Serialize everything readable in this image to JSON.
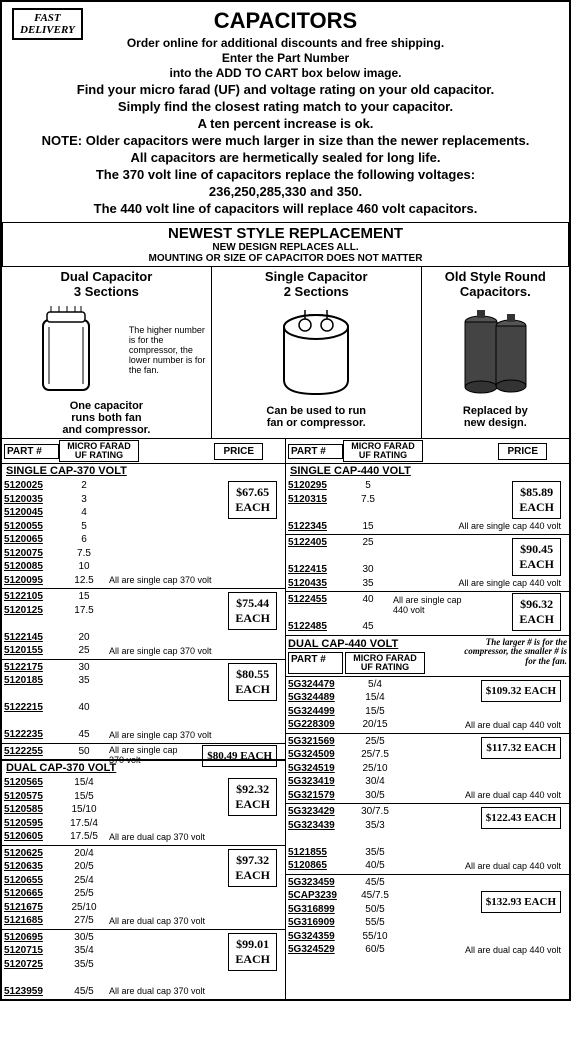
{
  "badge": {
    "l1": "FAST",
    "l2": "DELIVERY"
  },
  "title": "CAPACITORS",
  "subs": [
    "Order online for additional discounts and free shipping.",
    "Enter the Part Number",
    "into the ADD TO CART box below image."
  ],
  "subs2": [
    "Find your micro farad (UF) and voltage rating on your old capacitor.",
    "Simply find the closest rating match to your capacitor.",
    "A ten percent increase is ok.",
    "NOTE: Older capacitors were much larger in size than the newer replacements.",
    "All capacitors are hermetically sealed for long life.",
    "The 370 volt line of capacitors replace the following voltages:",
    "236,250,285,330 and 350.",
    "The 440 volt line of capacitors will replace 460 volt capacitors."
  ],
  "newest": {
    "t": "NEWEST STYLE REPLACEMENT",
    "s1": "NEW DESIGN REPLACES ALL.",
    "s2": "MOUNTING OR SIZE OF CAPACITOR DOES NOT MATTER"
  },
  "illus": {
    "a": {
      "h1": "Dual Capacitor",
      "h2": "3 Sections",
      "note": "The higher number is for the compressor, the lower number is for the fan.",
      "b1": "One capacitor",
      "b2": "runs both fan",
      "b3": "and compressor."
    },
    "b": {
      "h1": "Single Capacitor",
      "h2": "2 Sections",
      "b1": "Can be used to run",
      "b2": "fan or compressor."
    },
    "c": {
      "h1": "Old Style Round",
      "h2": "Capacitors.",
      "b1": "Replaced by",
      "b2": "new design."
    }
  },
  "th": {
    "part": "PART #",
    "uf": "MICRO FARAD UF RATING",
    "price": "PRICE"
  },
  "l": {
    "s1": {
      "h": "SINGLE CAP-370 VOLT"
    },
    "b1": {
      "parts": [
        "5120025",
        "5120035",
        "5120045",
        "5120055",
        "5120065",
        "5120075",
        "5120085",
        "5120095"
      ],
      "ufs": [
        "2",
        "3",
        "4",
        "5",
        "6",
        "7.5",
        "10",
        "12.5"
      ],
      "price": "$67.65",
      "each": "EACH",
      "desc": "All are single cap 370 volt"
    },
    "b2": {
      "parts": [
        "5122105",
        "5120125",
        "",
        "5122145",
        "5120155"
      ],
      "ufs": [
        "15",
        "17.5",
        "",
        "20",
        "25"
      ],
      "price": "$75.44",
      "each": "EACH",
      "desc": "All are single cap 370 volt"
    },
    "b3": {
      "parts": [
        "5122175",
        "5120185",
        "",
        "5122215",
        "",
        "5122235"
      ],
      "ufs": [
        "30",
        "35",
        "",
        "40",
        "",
        "45"
      ],
      "price": "$80.55",
      "each": "EACH",
      "desc": "All are single cap 370 volt"
    },
    "b4": {
      "parts": [
        "5122255"
      ],
      "ufs": [
        "50"
      ],
      "price": "$80.49 EACH",
      "desc": "All are single cap 370 volt"
    },
    "s2": {
      "h": "DUAL CAP-370 VOLT"
    },
    "b5": {
      "parts": [
        "5120565",
        "5120575",
        "5120585",
        "5120595",
        "5120605"
      ],
      "ufs": [
        "15/4",
        "15/5",
        "15/10",
        "17.5/4",
        "17.5/5"
      ],
      "price": "$92.32",
      "each": "EACH",
      "desc": "All are dual cap 370 volt"
    },
    "b6": {
      "parts": [
        "5120625",
        "5120635",
        "5120655",
        "5120665",
        "5121675",
        "5121685"
      ],
      "ufs": [
        "20/4",
        "20/5",
        "25/4",
        "25/5",
        "25/10",
        "27/5"
      ],
      "price": "$97.32",
      "each": "EACH",
      "desc": "All are dual cap 370 volt"
    },
    "b7": {
      "parts": [
        "5120695",
        "5120715",
        "5120725",
        "",
        "5123959"
      ],
      "ufs": [
        "30/5",
        "35/4",
        "35/5",
        "",
        "45/5"
      ],
      "price": "$99.01",
      "each": "EACH",
      "desc": "All are dual cap 370 volt"
    }
  },
  "r": {
    "s1": {
      "h": "SINGLE CAP-440 VOLT"
    },
    "b1": {
      "parts": [
        "5120295",
        "5120315",
        "",
        "5122345"
      ],
      "ufs": [
        "5",
        "7.5",
        "",
        "15"
      ],
      "price": "$85.89",
      "each": "EACH",
      "desc": "All are single cap 440 volt"
    },
    "b2": {
      "parts": [
        "5122405",
        "",
        "5122415",
        "5120435"
      ],
      "ufs": [
        "25",
        "",
        "30",
        "35"
      ],
      "price": "$90.45",
      "each": "EACH",
      "desc": "All are single cap 440 volt"
    },
    "b3": {
      "parts": [
        "5122455",
        "",
        "5122485"
      ],
      "ufs": [
        "40",
        "",
        "45"
      ],
      "price": "$96.32",
      "each": "EACH",
      "desc": "All are single cap 440 volt"
    },
    "s2": {
      "h": "DUAL CAP-440 VOLT",
      "note": "The larger # is for the compressor, the smaller # is for the fan."
    },
    "b4": {
      "parts": [
        "5G324479",
        "5G324489",
        "5G324499",
        "5G228309"
      ],
      "ufs": [
        "5/4",
        "15/4",
        "15/5",
        "20/15"
      ],
      "price": "$109.32 EACH",
      "desc": "All are dual cap 440 volt"
    },
    "b5": {
      "parts": [
        "5G321569",
        "5G324509",
        "5G324519",
        "5G323419",
        "5G321579"
      ],
      "ufs": [
        "25/5",
        "25/7.5",
        "25/10",
        "30/4",
        "30/5"
      ],
      "price": "$117.32 EACH",
      "desc": "All are dual cap 440 volt"
    },
    "b6": {
      "parts": [
        "5G323429",
        "5G323439",
        "",
        "5121855",
        "5120865"
      ],
      "ufs": [
        "30/7.5",
        "35/3",
        "",
        "35/5",
        "40/5"
      ],
      "price": "$122.43 EACH",
      "desc": "All are dual cap 440 volt"
    },
    "b7": {
      "parts": [
        "5G323459",
        "5CAP3239",
        "5G316899",
        "5G316909",
        "5G324359",
        "5G324529"
      ],
      "ufs": [
        "45/5",
        "45/7.5",
        "50/5",
        "55/5",
        "55/10",
        "60/5"
      ],
      "price": "$132.93 EACH",
      "desc": "All are dual cap 440 volt"
    }
  }
}
